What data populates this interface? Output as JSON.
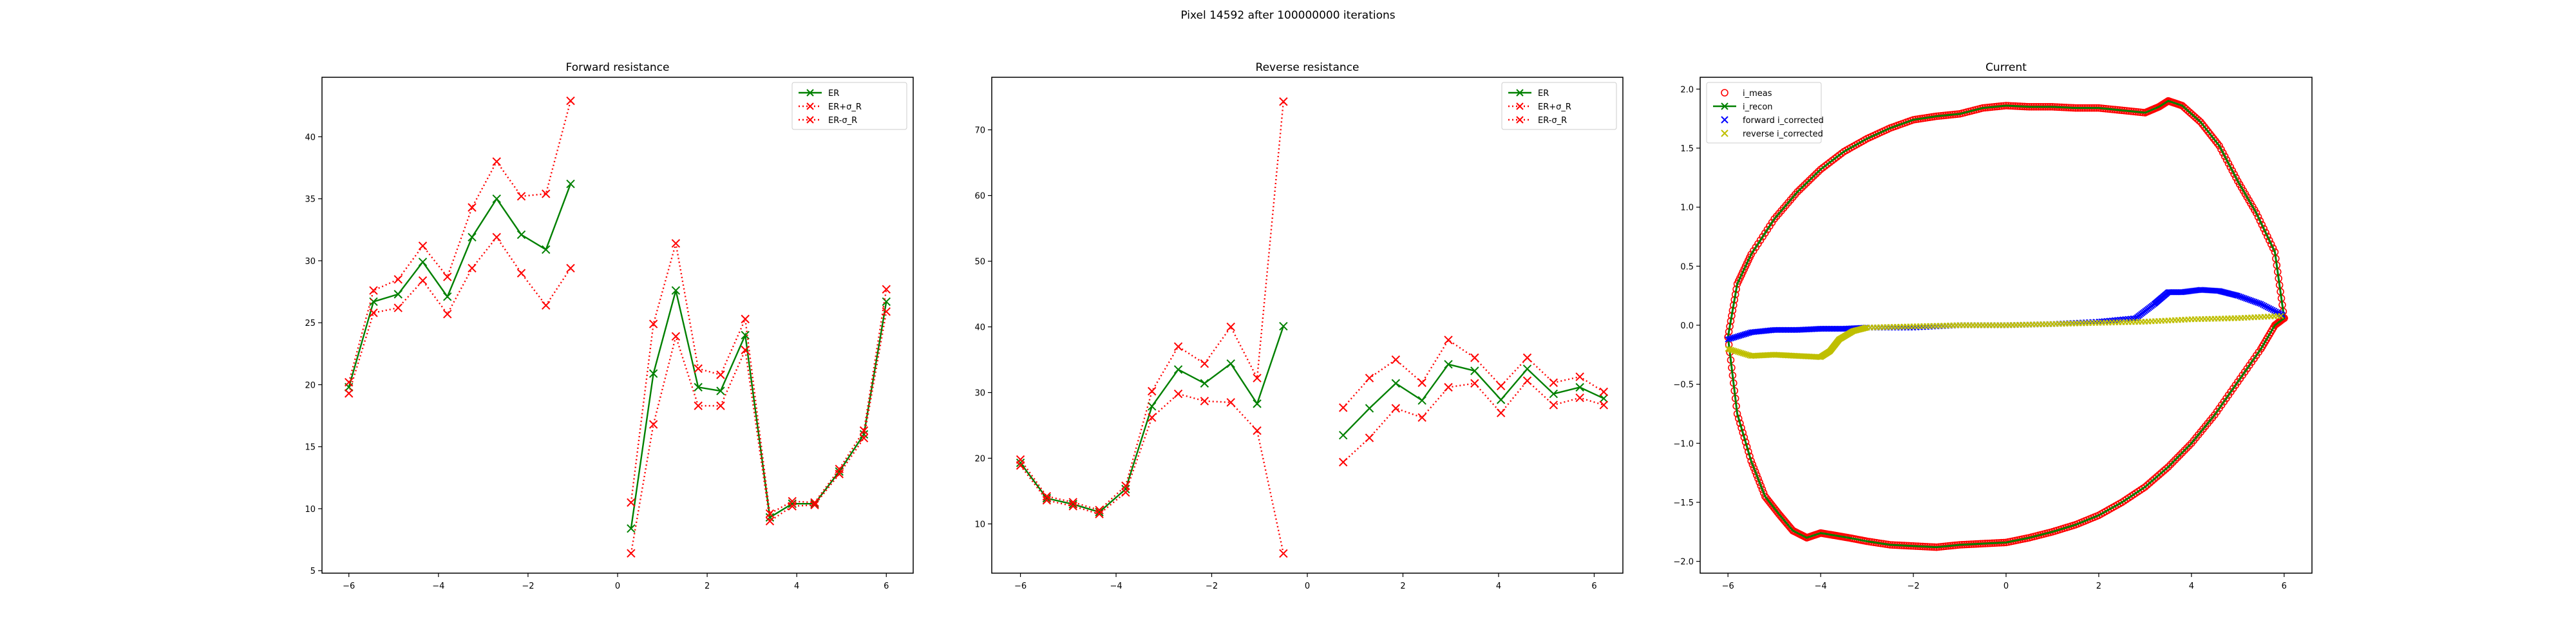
{
  "figure": {
    "suptitle": "Pixel 14592 after 100000000 iterations"
  },
  "chart_data": [
    {
      "type": "line",
      "title": "Forward resistance",
      "xlim": [
        -6.6,
        6.6
      ],
      "ylim": [
        4.8,
        44.8
      ],
      "xticks": [
        -6,
        -4,
        -2,
        0,
        2,
        4,
        6
      ],
      "yticks": [
        5,
        10,
        15,
        20,
        25,
        30,
        35,
        40
      ],
      "legend_position": "upper right",
      "series": [
        {
          "name": "ER",
          "color": "#008000",
          "dash": "solid",
          "marker": "x",
          "segments": [
            {
              "x": [
                -6.0,
                -5.45,
                -4.9,
                -4.35,
                -3.8,
                -3.25,
                -2.7,
                -2.15,
                -1.6,
                -1.05
              ],
              "y": [
                19.8,
                26.7,
                27.3,
                29.9,
                27.1,
                31.9,
                35.0,
                32.1,
                30.9,
                36.2
              ]
            },
            {
              "x": [
                0.3,
                0.8,
                1.3,
                1.8,
                2.3,
                2.85,
                3.4,
                3.9,
                4.4,
                4.95,
                5.5,
                6.0
              ],
              "y": [
                8.4,
                20.9,
                27.6,
                19.8,
                19.5,
                24.0,
                9.3,
                10.4,
                10.4,
                13.0,
                16.0,
                26.7
              ]
            }
          ]
        },
        {
          "name": "ER+σ_R",
          "color": "#ff0000",
          "dash": "dotted",
          "marker": "x",
          "segments": [
            {
              "x": [
                -6.0,
                -5.45,
                -4.9,
                -4.35,
                -3.8,
                -3.25,
                -2.7,
                -2.15,
                -1.6,
                -1.05
              ],
              "y": [
                20.2,
                27.6,
                28.5,
                31.2,
                28.7,
                34.3,
                38.0,
                35.2,
                35.4,
                42.9
              ]
            },
            {
              "x": [
                0.3,
                0.8,
                1.3,
                1.8,
                2.3,
                2.85,
                3.4,
                3.9,
                4.4,
                4.95,
                5.5,
                6.0
              ],
              "y": [
                10.5,
                24.9,
                31.4,
                21.3,
                20.8,
                25.3,
                9.6,
                10.6,
                10.5,
                13.2,
                16.3,
                27.7
              ]
            }
          ]
        },
        {
          "name": "ER-σ_R",
          "color": "#ff0000",
          "dash": "dotted",
          "marker": "x",
          "segments": [
            {
              "x": [
                -6.0,
                -5.45,
                -4.9,
                -4.35,
                -3.8,
                -3.25,
                -2.7,
                -2.15,
                -1.6,
                -1.05
              ],
              "y": [
                19.3,
                25.8,
                26.2,
                28.4,
                25.7,
                29.4,
                31.9,
                29.0,
                26.4,
                29.4
              ]
            },
            {
              "x": [
                0.3,
                0.8,
                1.3,
                1.8,
                2.3,
                2.85,
                3.4,
                3.9,
                4.4,
                4.95,
                5.5,
                6.0
              ],
              "y": [
                6.4,
                16.8,
                23.9,
                18.3,
                18.3,
                22.8,
                9.0,
                10.2,
                10.3,
                12.8,
                15.7,
                25.9
              ]
            }
          ]
        }
      ]
    },
    {
      "type": "line",
      "title": "Reverse resistance",
      "xlim": [
        -6.6,
        6.6
      ],
      "ylim": [
        2.5,
        78.0
      ],
      "xticks": [
        -6,
        -4,
        -2,
        0,
        2,
        4,
        6
      ],
      "yticks": [
        10,
        20,
        30,
        40,
        50,
        60,
        70
      ],
      "legend_position": "upper right",
      "series": [
        {
          "name": "ER",
          "color": "#008000",
          "dash": "solid",
          "marker": "x",
          "segments": [
            {
              "x": [
                -6.0,
                -5.45,
                -4.9,
                -4.35,
                -3.8,
                -3.25,
                -2.7,
                -2.15,
                -1.6,
                -1.05,
                -0.5
              ],
              "y": [
                19.3,
                13.9,
                13.0,
                11.8,
                15.3,
                27.9,
                33.5,
                31.4,
                34.4,
                28.3,
                40.1
              ]
            },
            {
              "x": [
                0.75,
                1.3,
                1.85,
                2.4,
                2.95,
                3.5,
                4.05,
                4.6,
                5.15,
                5.7,
                6.2
              ],
              "y": [
                23.5,
                27.6,
                31.4,
                28.8,
                34.3,
                33.3,
                28.9,
                33.6,
                29.8,
                30.8,
                29.1
              ]
            }
          ]
        },
        {
          "name": "ER+σ_R",
          "color": "#ff0000",
          "dash": "dotted",
          "marker": "x",
          "segments": [
            {
              "x": [
                -6.0,
                -5.45,
                -4.9,
                -4.35,
                -3.8,
                -3.25,
                -2.7,
                -2.15,
                -1.6,
                -1.05,
                -0.5
              ],
              "y": [
                19.8,
                14.2,
                13.3,
                12.1,
                15.8,
                30.2,
                37.0,
                34.4,
                40.0,
                32.2,
                74.3
              ]
            },
            {
              "x": [
                0.75,
                1.3,
                1.85,
                2.4,
                2.95,
                3.5,
                4.05,
                4.6,
                5.15,
                5.7,
                6.2
              ],
              "y": [
                27.7,
                32.2,
                35.0,
                31.5,
                38.0,
                35.3,
                31.0,
                35.3,
                31.5,
                32.4,
                30.1
              ]
            }
          ]
        },
        {
          "name": "ER-σ_R",
          "color": "#ff0000",
          "dash": "dotted",
          "marker": "x",
          "segments": [
            {
              "x": [
                -6.0,
                -5.45,
                -4.9,
                -4.35,
                -3.8,
                -3.25,
                -2.7,
                -2.15,
                -1.6,
                -1.05,
                -0.5
              ],
              "y": [
                18.9,
                13.6,
                12.7,
                11.5,
                14.8,
                26.2,
                29.8,
                28.7,
                28.5,
                24.2,
                5.5
              ]
            },
            {
              "x": [
                0.75,
                1.3,
                1.85,
                2.4,
                2.95,
                3.5,
                4.05,
                4.6,
                5.15,
                5.7,
                6.2
              ],
              "y": [
                19.4,
                23.1,
                27.6,
                26.2,
                30.8,
                31.4,
                26.9,
                31.8,
                28.1,
                29.2,
                28.1
              ]
            }
          ]
        }
      ]
    },
    {
      "type": "scatter",
      "title": "Current",
      "xlim": [
        -6.6,
        6.6
      ],
      "ylim": [
        -2.1,
        2.1
      ],
      "xticks": [
        -6,
        -4,
        -2,
        0,
        2,
        4,
        6
      ],
      "yticks": [
        -2.0,
        -1.5,
        -1.0,
        -0.5,
        0.0,
        0.5,
        1.0,
        1.5,
        2.0
      ],
      "legend_position": "upper left",
      "series": [
        {
          "name": "i_meas",
          "color": "#ff0000",
          "marker": "o",
          "upper_x": [
            -6.0,
            -5.8,
            -5.5,
            -5.0,
            -4.5,
            -4.0,
            -3.5,
            -3.0,
            -2.5,
            -2.0,
            -1.5,
            -1.0,
            -0.5,
            0.0,
            0.5,
            1.0,
            1.5,
            2.0,
            2.5,
            3.0,
            3.3,
            3.5,
            3.8,
            4.2,
            4.6,
            5.0,
            5.4,
            5.8,
            6.0
          ],
          "upper_y": [
            -0.1,
            0.35,
            0.6,
            0.9,
            1.13,
            1.32,
            1.47,
            1.58,
            1.67,
            1.74,
            1.77,
            1.79,
            1.84,
            1.86,
            1.85,
            1.85,
            1.84,
            1.84,
            1.82,
            1.8,
            1.85,
            1.9,
            1.86,
            1.72,
            1.52,
            1.22,
            0.95,
            0.62,
            0.06
          ],
          "lower_x": [
            -6.0,
            -5.8,
            -5.5,
            -5.2,
            -4.9,
            -4.6,
            -4.3,
            -4.0,
            -3.7,
            -3.4,
            -3.0,
            -2.5,
            -2.0,
            -1.5,
            -1.0,
            -0.5,
            0.0,
            0.5,
            1.0,
            1.5,
            2.0,
            2.5,
            3.0,
            3.5,
            4.0,
            4.5,
            5.0,
            5.5,
            5.8,
            6.0
          ],
          "lower_y": [
            -0.1,
            -0.75,
            -1.15,
            -1.45,
            -1.6,
            -1.74,
            -1.8,
            -1.76,
            -1.78,
            -1.8,
            -1.83,
            -1.86,
            -1.87,
            -1.88,
            -1.86,
            -1.85,
            -1.84,
            -1.8,
            -1.75,
            -1.69,
            -1.61,
            -1.5,
            -1.37,
            -1.2,
            -1.0,
            -0.76,
            -0.48,
            -0.2,
            0.0,
            0.06
          ]
        },
        {
          "name": "i_recon",
          "color": "#008000",
          "marker": "x"
        },
        {
          "name": "forward i_corrected",
          "color": "#0000ff",
          "marker": "x",
          "x": [
            -6.0,
            -5.5,
            -5.0,
            -4.5,
            -4.0,
            -3.5,
            -3.0,
            -2.0,
            -1.0,
            0.0,
            1.0,
            2.0,
            2.8,
            3.2,
            3.5,
            3.8,
            4.2,
            4.6,
            5.0,
            5.5,
            6.0
          ],
          "y": [
            -0.12,
            -0.06,
            -0.04,
            -0.04,
            -0.03,
            -0.03,
            -0.02,
            -0.02,
            0.0,
            0.0,
            0.01,
            0.03,
            0.06,
            0.18,
            0.28,
            0.28,
            0.3,
            0.29,
            0.25,
            0.18,
            0.08
          ]
        },
        {
          "name": "reverse i_corrected",
          "color": "#bfbf00",
          "marker": "x",
          "x": [
            -6.0,
            -5.5,
            -5.0,
            -4.5,
            -4.0,
            -3.8,
            -3.6,
            -3.3,
            -3.0,
            -2.0,
            -1.0,
            0.0,
            1.0,
            2.0,
            3.0,
            4.0,
            5.0,
            6.0
          ],
          "y": [
            -0.2,
            -0.26,
            -0.25,
            -0.26,
            -0.27,
            -0.22,
            -0.12,
            -0.05,
            -0.02,
            -0.01,
            0.0,
            0.0,
            0.01,
            0.02,
            0.03,
            0.05,
            0.06,
            0.08
          ]
        }
      ]
    }
  ]
}
